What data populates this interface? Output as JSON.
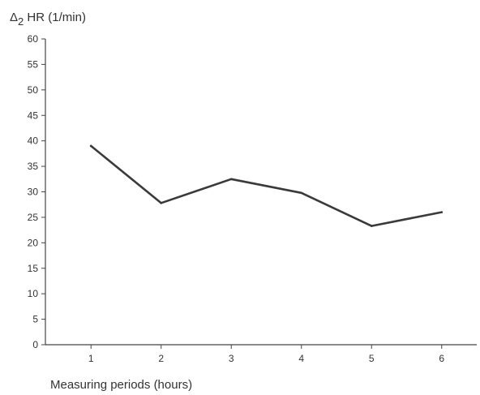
{
  "chart_data": {
    "type": "line",
    "title": "",
    "ylabel_prefix": "Δ",
    "ylabel_sub": "2",
    "ylabel_rest": " HR (1/min)",
    "xlabel": "Measuring periods (hours)",
    "x": [
      1,
      2,
      3,
      4,
      5,
      6
    ],
    "x_tick_labels": [
      "1",
      "2",
      "3",
      "4",
      "5",
      "6"
    ],
    "y_ticks": [
      0,
      5,
      10,
      15,
      20,
      25,
      30,
      35,
      40,
      45,
      50,
      55,
      60
    ],
    "ylim": [
      0,
      60
    ],
    "xlim": [
      0.35,
      6.5
    ],
    "grid": false,
    "series": [
      {
        "values": [
          39,
          27.8,
          32.5,
          29.8,
          23.3,
          26
        ],
        "color": "#3a3a3a"
      }
    ]
  }
}
